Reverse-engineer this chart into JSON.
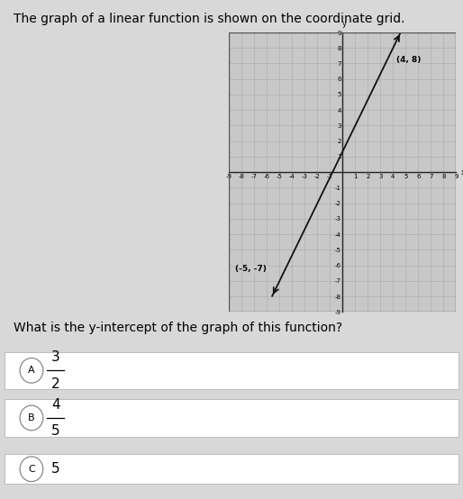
{
  "title": "The graph of a linear function is shown on the coordinate grid.",
  "question": "What is the y-intercept of the graph of this function?",
  "point1": [
    -5,
    -7
  ],
  "point2": [
    4,
    8
  ],
  "point1_label": "(-5, -7)",
  "point2_label": "(4, 8)",
  "xlim": [
    -9,
    9
  ],
  "ylim": [
    -9,
    9
  ],
  "choices": [
    {
      "letter": "A",
      "numerator": "3",
      "denominator": "2"
    },
    {
      "letter": "B",
      "numerator": "4",
      "denominator": "5"
    }
  ],
  "choice_c_text": "5",
  "bg_color": "#d8d8d8",
  "grid_color": "#aaaaaa",
  "axis_color": "#222222",
  "line_color": "#111111",
  "plot_bg": "#c8c8c8",
  "plot_border": "#555555",
  "title_fontsize": 10,
  "question_fontsize": 10,
  "tick_fontsize": 5,
  "label_fontsize": 6.5,
  "choice_fontsize": 11
}
